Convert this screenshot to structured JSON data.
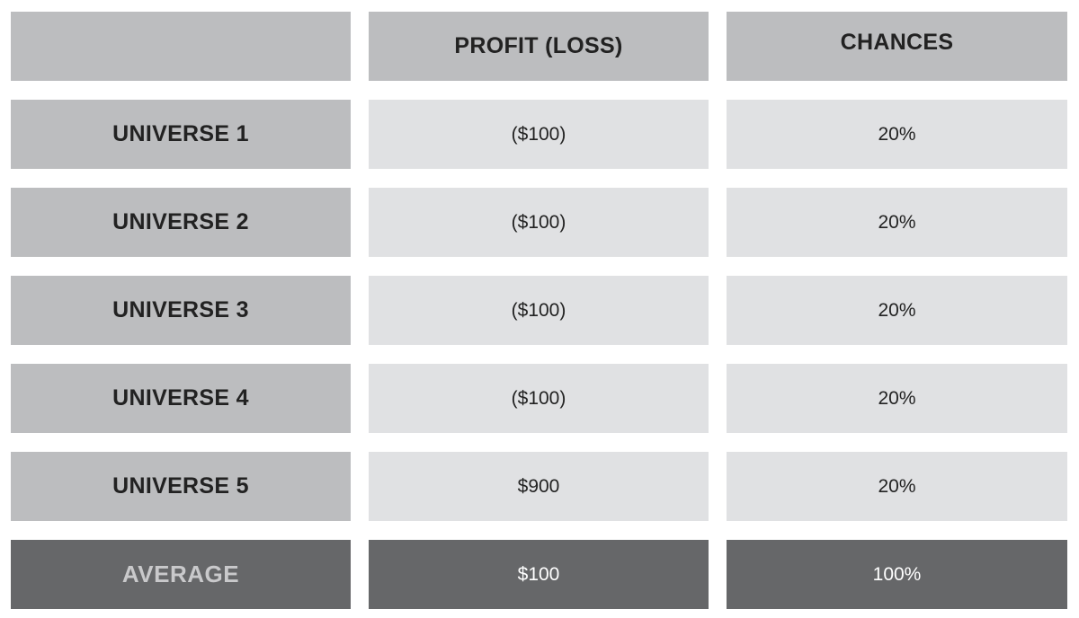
{
  "chart_data": {
    "type": "table",
    "columns": [
      "",
      "PROFIT (LOSS)",
      "CHANCES"
    ],
    "rows": [
      {
        "label": "UNIVERSE 1",
        "profit": "($100)",
        "chances": "20%"
      },
      {
        "label": "UNIVERSE 2",
        "profit": "($100)",
        "chances": "20%"
      },
      {
        "label": "UNIVERSE 3",
        "profit": "($100)",
        "chances": "20%"
      },
      {
        "label": "UNIVERSE 4",
        "profit": "($100)",
        "chances": "20%"
      },
      {
        "label": "UNIVERSE 5",
        "profit": "$900",
        "chances": "20%"
      }
    ],
    "summary": {
      "label": "AVERAGE",
      "profit": "$100",
      "chances": "100%"
    },
    "values": {
      "profit": [
        -100,
        -100,
        -100,
        -100,
        900
      ],
      "chances_percent": [
        20,
        20,
        20,
        20,
        20
      ],
      "average_profit": 100,
      "total_chances_percent": 100
    }
  },
  "colors": {
    "header_bg": "#bcbdbf",
    "value_bg": "#e0e1e3",
    "average_bg": "#666769",
    "average_label_text": "#c9c9cb",
    "average_value_text": "#ffffff",
    "text": "#222222"
  }
}
